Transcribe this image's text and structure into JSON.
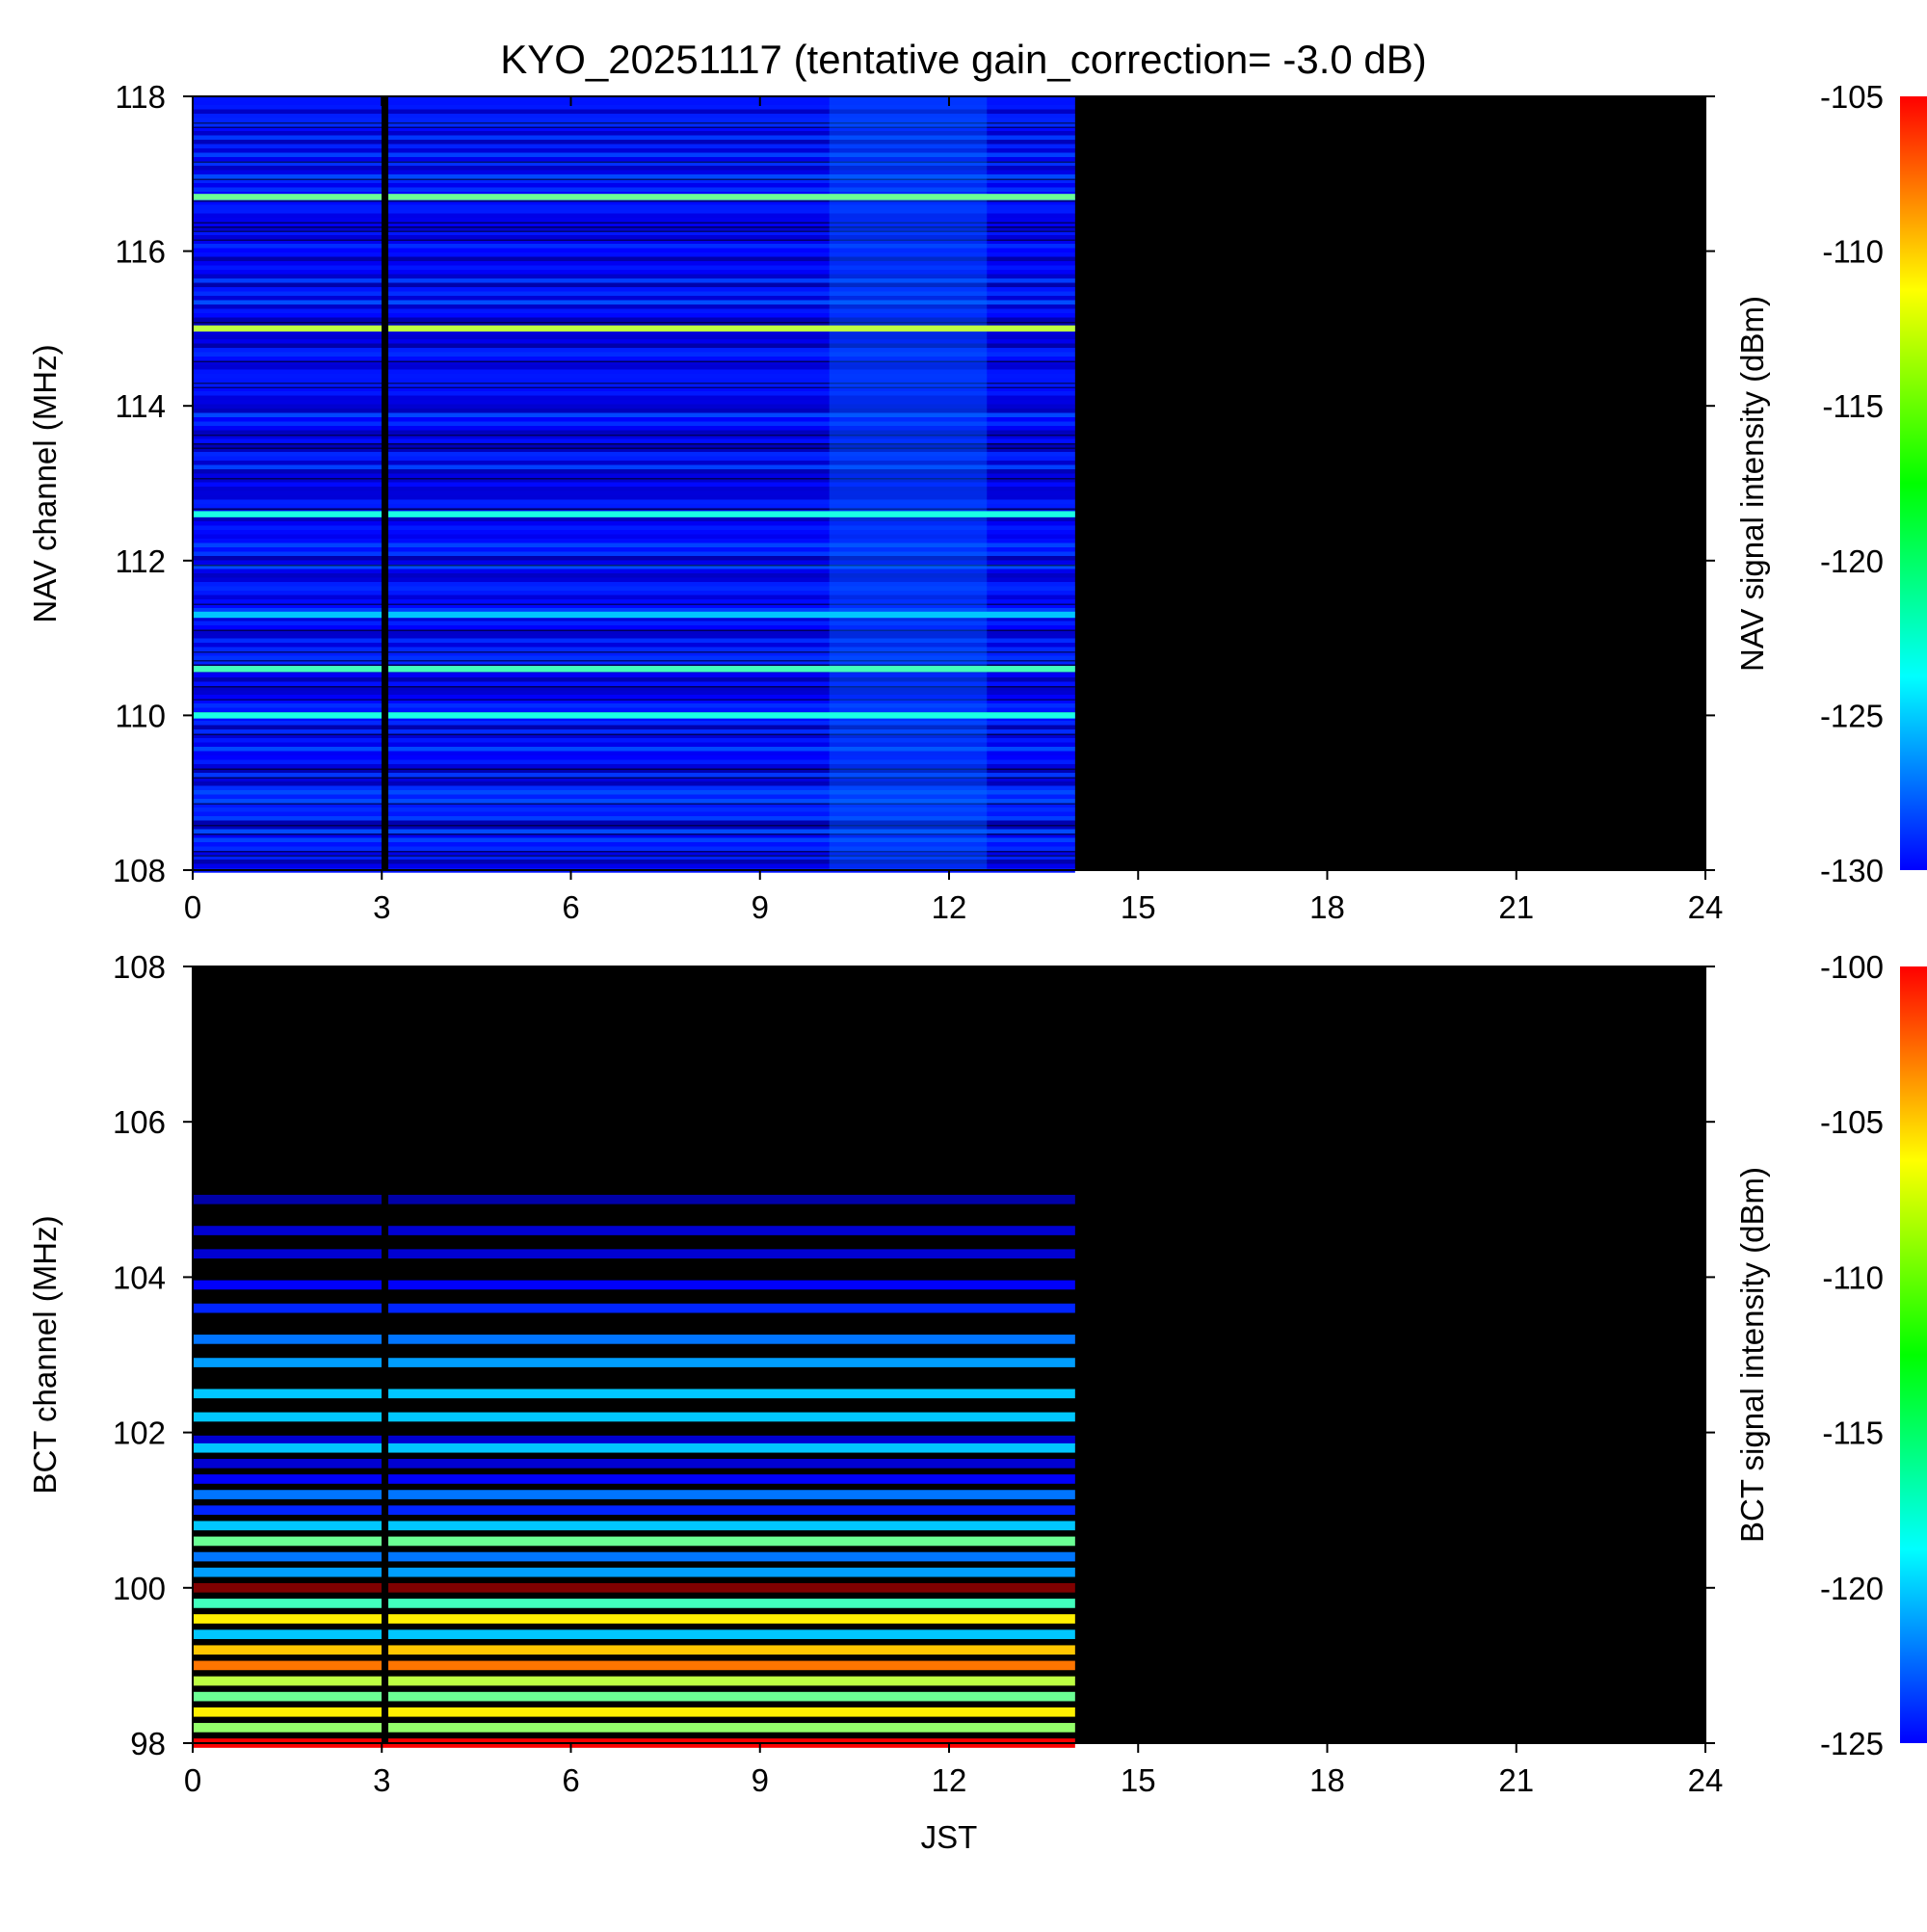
{
  "chart_data": [
    {
      "type": "heatmap",
      "title": "KYO_20251117 (tentative gain_correction= -3.0 dB)",
      "xlabel": "",
      "ylabel": "NAV channel (MHz)",
      "colorbar_label": "NAV signal intensity (dBm)",
      "xlim": [
        0,
        24
      ],
      "ylim": [
        108,
        118
      ],
      "xticks": [
        "0",
        "3",
        "6",
        "9",
        "12",
        "15",
        "18",
        "21",
        "24"
      ],
      "yticks": [
        "108",
        "110",
        "112",
        "114",
        "116",
        "118"
      ],
      "clim": [
        -130,
        -105
      ],
      "cticks": [
        "-105",
        "-110",
        "-115",
        "-120",
        "-125",
        "-130"
      ],
      "data_x_range": [
        0,
        14
      ],
      "gap_x": 3.05,
      "background_level_range": [
        -129,
        -125
      ],
      "strong_channels": [
        {
          "freq": 116.7,
          "level": -118
        },
        {
          "freq": 115.0,
          "level": -116
        },
        {
          "freq": 112.6,
          "level": -120
        },
        {
          "freq": 111.3,
          "level": -122
        },
        {
          "freq": 110.6,
          "level": -119
        },
        {
          "freq": 110.0,
          "level": -120
        }
      ]
    },
    {
      "type": "heatmap",
      "title": "",
      "xlabel": "JST",
      "ylabel": "BCT channel (MHz)",
      "colorbar_label": "BCT signal intensity (dBm)",
      "xlim": [
        0,
        24
      ],
      "ylim": [
        98,
        108
      ],
      "xticks": [
        "0",
        "3",
        "6",
        "9",
        "12",
        "15",
        "18",
        "21",
        "24"
      ],
      "yticks": [
        "98",
        "100",
        "102",
        "104",
        "106",
        "108"
      ],
      "clim": [
        -125,
        -100
      ],
      "cticks": [
        "-100",
        "-105",
        "-110",
        "-115",
        "-120",
        "-125"
      ],
      "data_x_range": [
        0,
        14
      ],
      "gap_x": 3.05,
      "channels": [
        {
          "freq": 105.0,
          "level": -124
        },
        {
          "freq": 104.6,
          "level": -123
        },
        {
          "freq": 104.3,
          "level": -123
        },
        {
          "freq": 103.9,
          "level": -122
        },
        {
          "freq": 103.6,
          "level": -121
        },
        {
          "freq": 103.2,
          "level": -119
        },
        {
          "freq": 102.9,
          "level": -118
        },
        {
          "freq": 102.5,
          "level": -117
        },
        {
          "freq": 102.2,
          "level": -117
        },
        {
          "freq": 101.9,
          "level": -123
        },
        {
          "freq": 101.8,
          "level": -117
        },
        {
          "freq": 101.6,
          "level": -123
        },
        {
          "freq": 101.4,
          "level": -122
        },
        {
          "freq": 101.2,
          "level": -119
        },
        {
          "freq": 101.0,
          "level": -121
        },
        {
          "freq": 100.8,
          "level": -117
        },
        {
          "freq": 100.6,
          "level": -113
        },
        {
          "freq": 100.4,
          "level": -119
        },
        {
          "freq": 100.2,
          "level": -118
        },
        {
          "freq": 100.0,
          "level": -100
        },
        {
          "freq": 99.8,
          "level": -114
        },
        {
          "freq": 99.6,
          "level": -109
        },
        {
          "freq": 99.4,
          "level": -117
        },
        {
          "freq": 99.2,
          "level": -108
        },
        {
          "freq": 99.0,
          "level": -106
        },
        {
          "freq": 98.8,
          "level": -111
        },
        {
          "freq": 98.6,
          "level": -113
        },
        {
          "freq": 98.4,
          "level": -109
        },
        {
          "freq": 98.2,
          "level": -112
        },
        {
          "freq": 98.0,
          "level": -103
        }
      ]
    }
  ]
}
